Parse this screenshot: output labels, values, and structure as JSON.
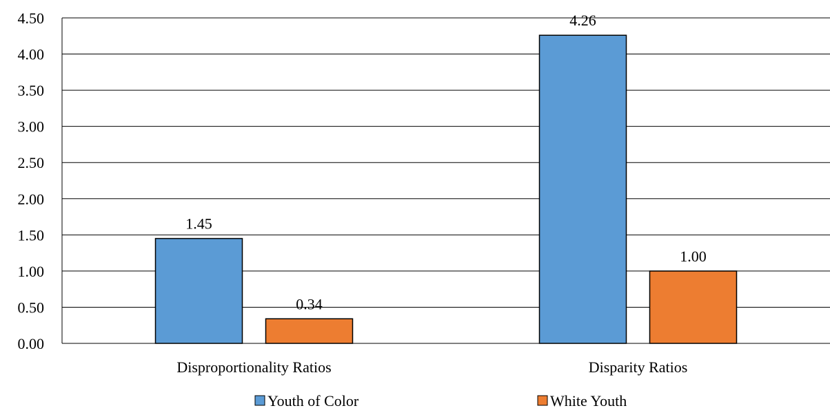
{
  "chart_data": {
    "type": "bar",
    "categories": [
      "Disproportionality Ratios",
      "Disparity Ratios"
    ],
    "series": [
      {
        "name": "Youth of Color",
        "values": [
          1.45,
          4.26
        ],
        "color": "#5B9BD5"
      },
      {
        "name": "White Youth",
        "values": [
          0.34,
          1.0
        ],
        "color": "#ED7D31"
      }
    ],
    "ylim": [
      0,
      4.5
    ],
    "yticks": [
      "0.00",
      "0.50",
      "1.00",
      "1.50",
      "2.00",
      "2.50",
      "3.00",
      "3.50",
      "4.00",
      "4.50"
    ],
    "data_labels": [
      [
        "1.45",
        "4.26"
      ],
      [
        "0.34",
        "1.00"
      ]
    ],
    "grid": true,
    "legend_position": "bottom",
    "title": "",
    "xlabel": "",
    "ylabel": ""
  }
}
